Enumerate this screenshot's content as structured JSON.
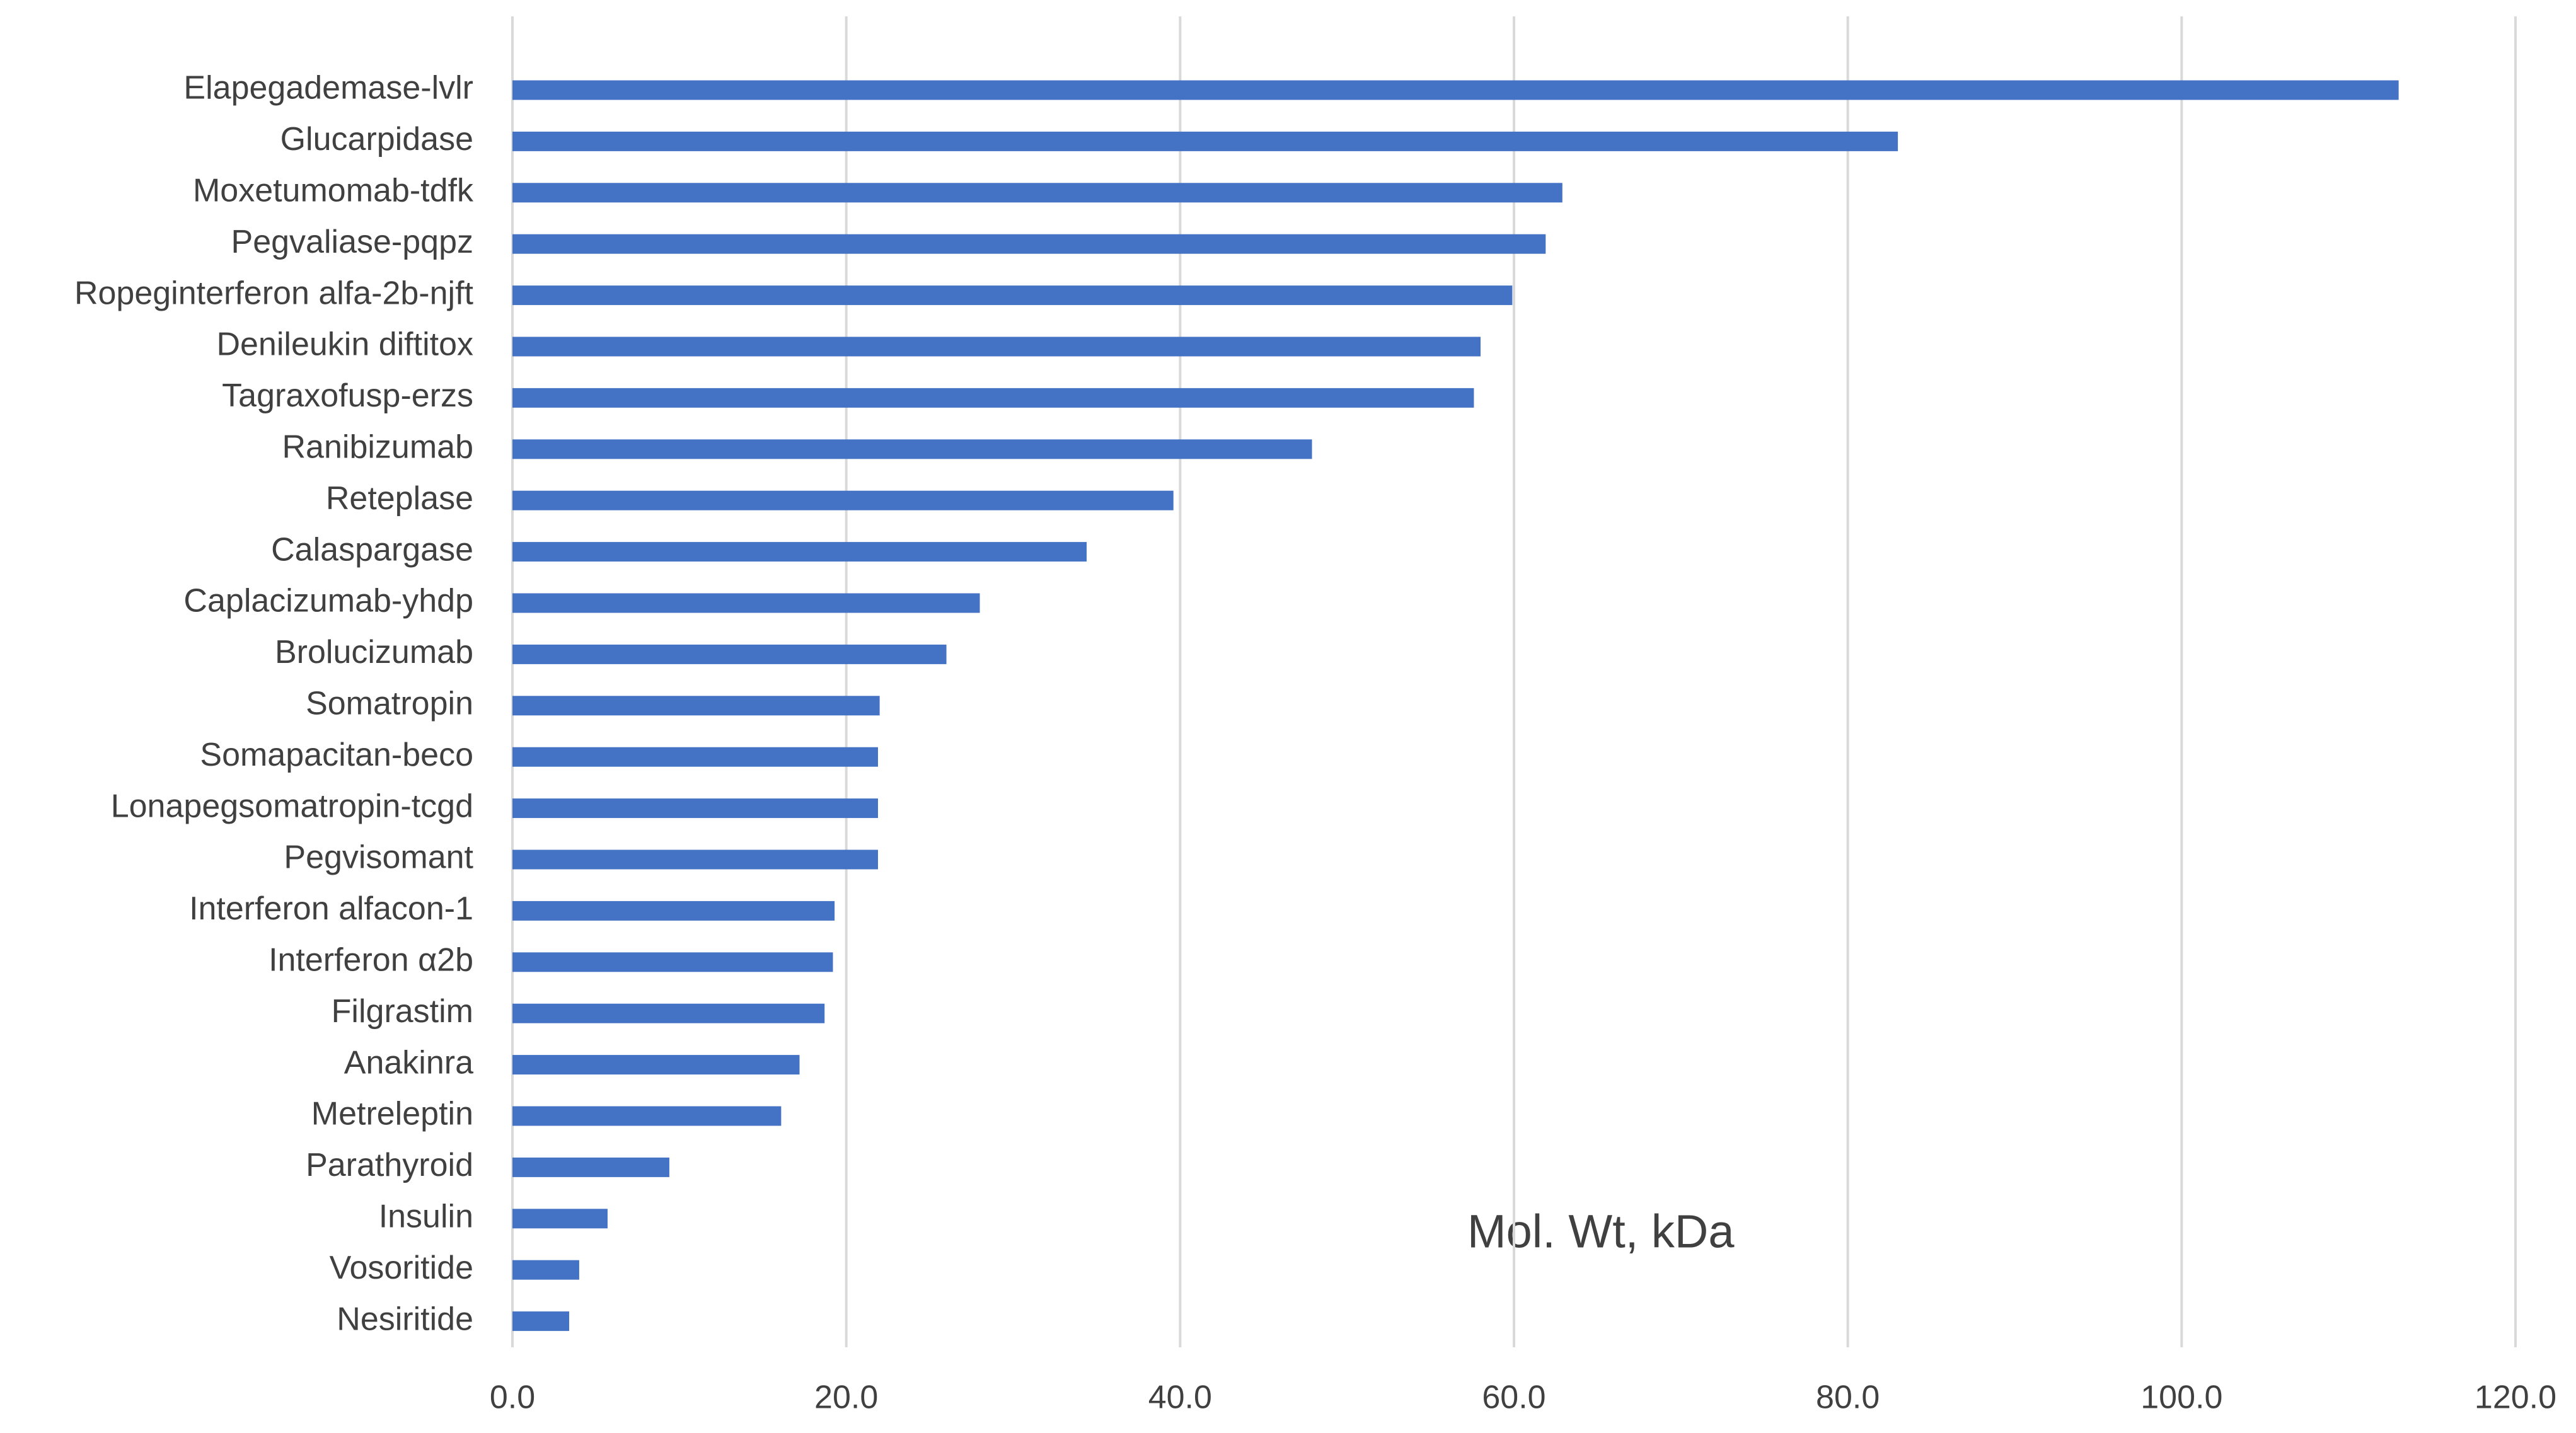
{
  "chart_data": {
    "type": "bar",
    "orientation": "horizontal",
    "annotation": "Mol. Wt, kDa",
    "categories": [
      "Elapegademase-lvlr",
      "Glucarpidase",
      "Moxetumomab-tdfk",
      "Pegvaliase-pqpz",
      "Ropeginterferon alfa-2b-njft",
      "Denileukin diftitox",
      "Tagraxofusp-erzs",
      "Ranibizumab",
      "Reteplase",
      "Calaspargase",
      "Caplacizumab-yhdp",
      "Brolucizumab",
      "Somatropin",
      "Somapacitan-beco",
      "Lonapegsomatropin-tcgd",
      "Pegvisomant",
      "Interferon alfacon-1",
      "Interferon α2b",
      "Filgrastim",
      "Anakinra",
      "Metreleptin",
      "Parathyroid",
      "Insulin",
      "Vosoritide",
      "Nesiritide"
    ],
    "values": [
      113.0,
      83.0,
      62.9,
      61.9,
      59.9,
      58.0,
      57.6,
      47.9,
      39.6,
      34.4,
      28.0,
      26.0,
      22.0,
      21.9,
      21.9,
      21.9,
      19.3,
      19.2,
      18.7,
      17.2,
      16.1,
      9.4,
      5.7,
      4.0,
      3.4
    ],
    "color": "#4472c4",
    "xlim": [
      0,
      120
    ],
    "xticks": [
      {
        "value": 0,
        "label": "0.0"
      },
      {
        "value": 20,
        "label": "20.0"
      },
      {
        "value": 40,
        "label": "40.0"
      },
      {
        "value": 60,
        "label": "60.0"
      },
      {
        "value": 80,
        "label": "80.0"
      },
      {
        "value": 100,
        "label": "100.0"
      },
      {
        "value": 120,
        "label": "120.0"
      }
    ],
    "grid": true
  }
}
